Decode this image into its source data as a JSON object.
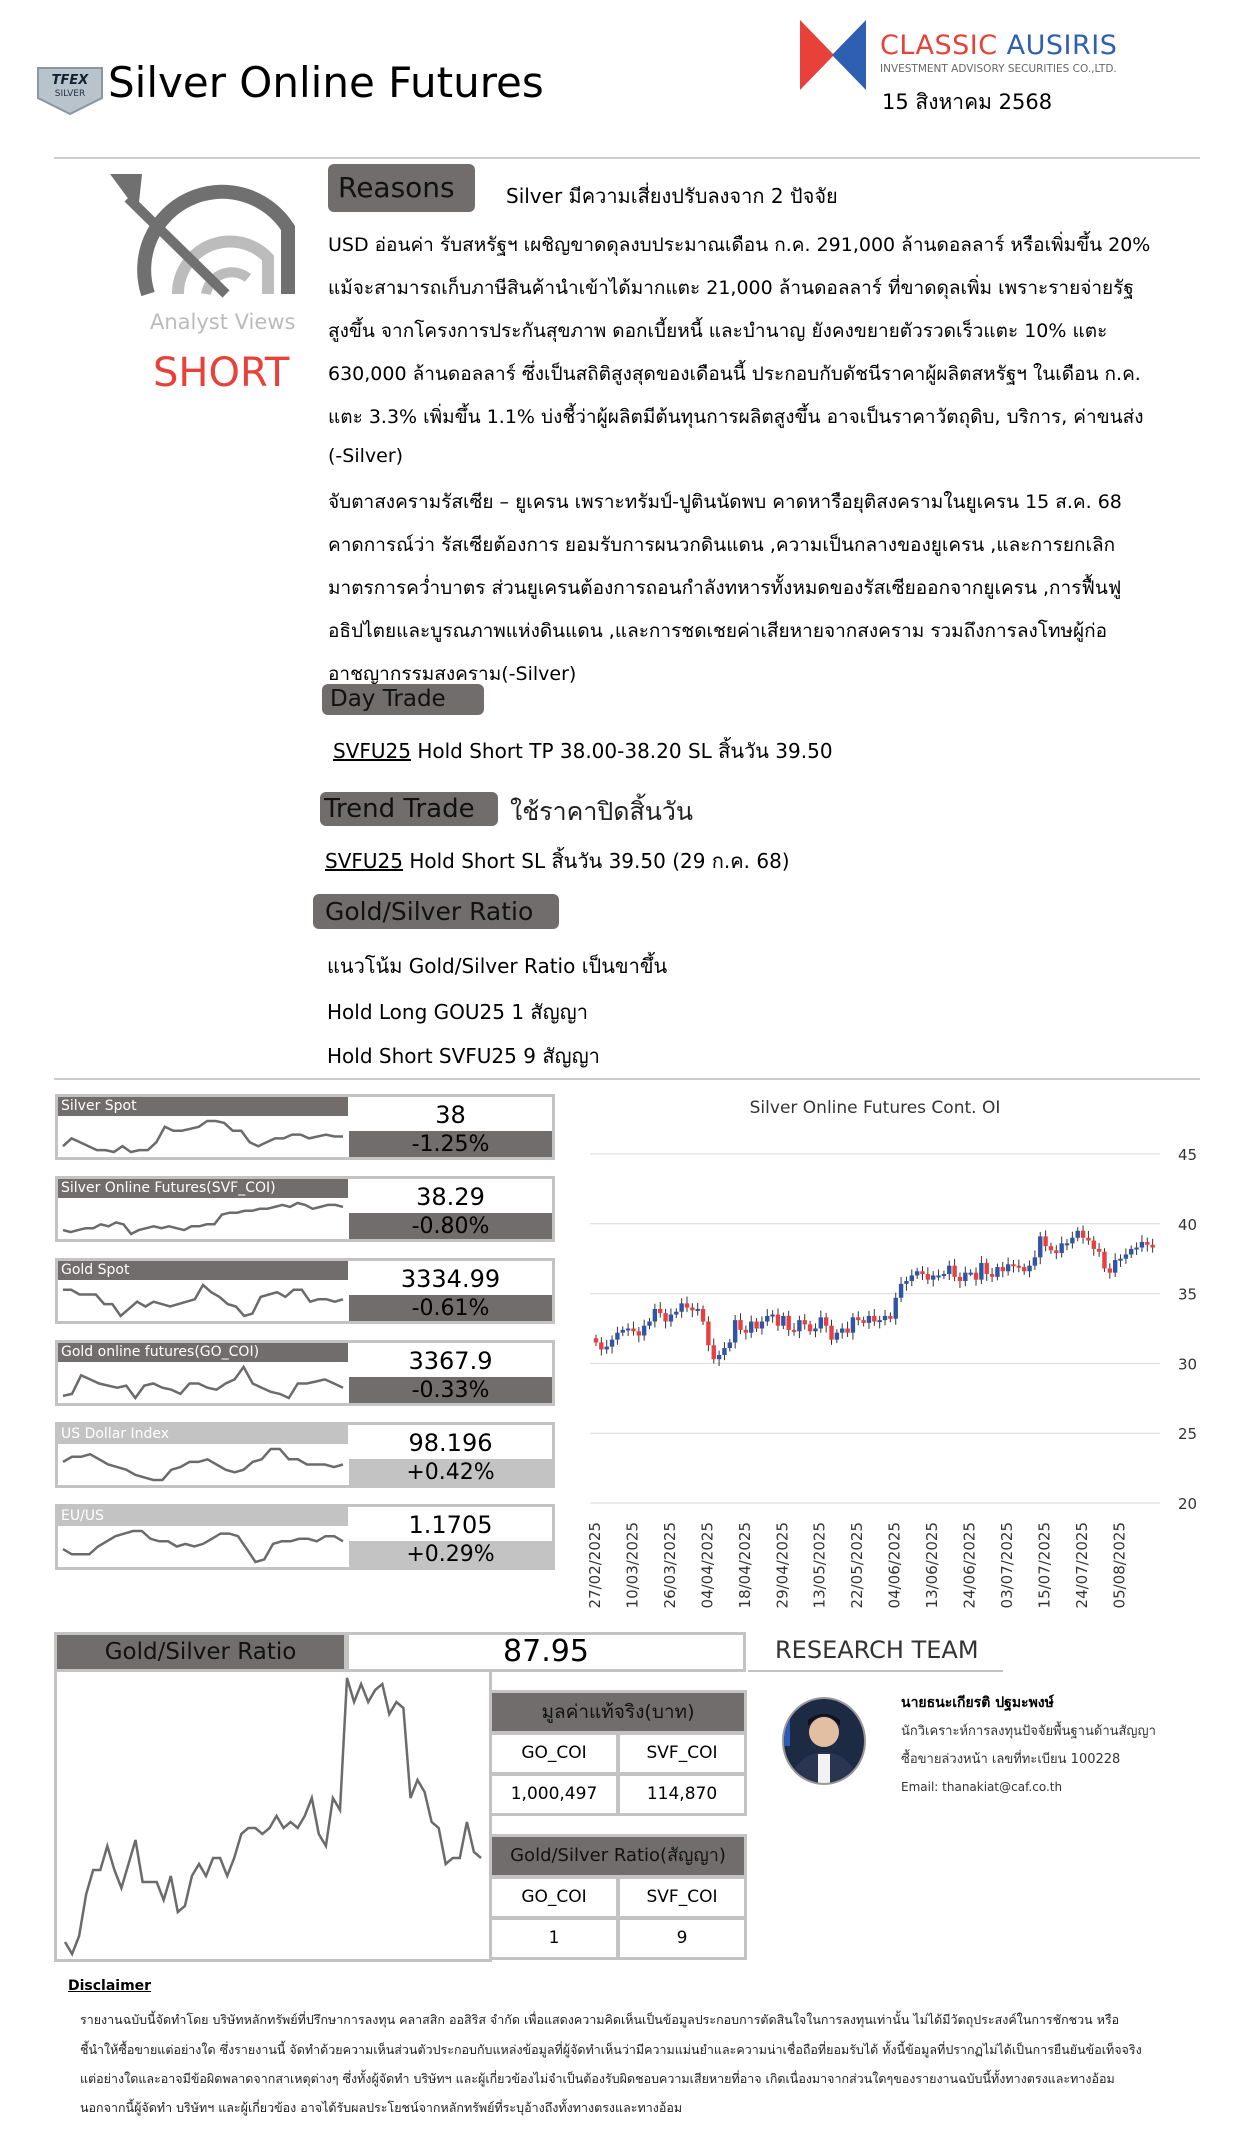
{
  "header": {
    "badge_text": "TFEX SILVER",
    "title": "Silver Online Futures",
    "brand_name": "CLASSIC AUSIRIS",
    "brand_sub": "INVESTMENT ADVISORY SECURITIES CO.,LTD.",
    "date": "15 สิงหาคม 2568",
    "brand_colors": {
      "red": "#e8413a",
      "blue": "#2f5fb0"
    }
  },
  "view": {
    "label": "Analyst Views",
    "signal": "SHORT",
    "signal_color": "#e8413a"
  },
  "reasons": {
    "label": "Reasons",
    "headline": "Silver มีความเสี่ยงปรับลงจาก 2 ปัจจัย",
    "lines": [
      "USD อ่อนค่า รับสหรัฐฯ เผชิญขาดดุลงบประมาณเดือน ก.ค. 291,000 ล้านดอลลาร์ หรือเพิ่มขึ้น 20%",
      "แม้จะสามารถเก็บภาษีสินค้านำเข้าได้มากแตะ 21,000 ล้านดอลลาร์ ที่ขาดดุลเพิ่ม เพราะรายจ่ายรัฐ",
      "สูงขึ้น จากโครงการประกันสุขภาพ ดอกเบี้ยหนี้ และบำนาญ ยังคงขยายตัวรวดเร็วแตะ 10% แตะ",
      "630,000 ล้านดอลลาร์ ซึ่งเป็นสถิติสูงสุดของเดือนนี้ ประกอบกับดัชนีราคาผู้ผลิตสหรัฐฯ ในเดือน ก.ค.",
      "แตะ 3.3% เพิ่มขึ้น 1.1% บ่งชี้ว่าผู้ผลิตมีต้นทุนการผลิตสูงขึ้น อาจเป็นราคาวัตถุดิบ, บริการ, ค่าขนส่ง",
      "(-Silver)",
      "จับตาสงครามรัสเซีย – ยูเครน เพราะทรัมป์-ปูตินนัดพบ คาดหารือยุติสงครามในยูเครน 15 ส.ค. 68",
      "คาดการณ์ว่า รัสเซียต้องการ ยอมรับการผนวกดินแดน ,ความเป็นกลางของยูเครน ,และการยกเลิก",
      "มาตรการคว่ำบาตร ส่วนยูเครนต้องการถอนกำลังทหารทั้งหมดของรัสเซียออกจากยูเครน ,การฟื้นฟู",
      "อธิปไตยและบูรณภาพแห่งดินแดน ,และการชดเชยค่าเสียหายจากสงคราม รวมถึงการลงโทษผู้ก่อ",
      "อาชญากรรมสงคราม(-Silver)"
    ]
  },
  "day_trade": {
    "label": "Day Trade",
    "symbol": "SVFU25",
    "text": "Hold Short TP 38.00-38.20  SL สิ้นวัน 39.50"
  },
  "trend_trade": {
    "label": "Trend Trade",
    "note": "ใช้ราคาปิดสิ้นวัน",
    "symbol": "SVFU25",
    "text": "Hold Short SL สิ้นวัน 39.50 (29 ก.ค. 68)"
  },
  "ratio_section": {
    "label": "Gold/Silver Ratio",
    "lines": [
      "แนวโน้ม Gold/Silver Ratio เป็นขาขึ้น",
      "Hold Long GOU25 1 สัญญา",
      "Hold Short SVFU25 9 สัญญา"
    ]
  },
  "tiles": [
    {
      "name": "Silver Spot",
      "value": "38",
      "change": "-1.25%",
      "style": "dark",
      "spark": [
        2,
        4,
        3,
        2,
        1,
        1,
        0.5,
        2,
        0.5,
        1,
        1,
        3,
        7,
        6,
        6,
        6.5,
        7,
        8.5,
        8.5,
        8,
        6,
        6,
        3,
        2,
        3,
        4,
        4,
        5,
        5,
        4,
        4.5,
        5,
        4.5,
        4.5
      ]
    },
    {
      "name": "Silver Online Futures(SVF_COI)",
      "value": "38.29",
      "change": "-0.80%",
      "style": "dark",
      "spark": [
        1,
        0.5,
        1,
        1.5,
        1.5,
        2.5,
        2,
        3,
        2.5,
        0,
        1,
        1.5,
        2,
        1.5,
        2,
        1.5,
        1,
        2,
        2,
        2.5,
        2.5,
        5,
        5.5,
        5.5,
        6,
        6,
        6.5,
        6.5,
        7,
        7.5,
        7,
        8,
        7.5,
        6.5,
        7,
        7.5,
        7.5,
        7
      ]
    },
    {
      "name": "Gold Spot",
      "value": "3334.99",
      "change": "-0.61%",
      "style": "dark",
      "spark": [
        6,
        6,
        5,
        5,
        5,
        3,
        3,
        0.5,
        2,
        3.5,
        2.5,
        3.5,
        3,
        2.5,
        3,
        3.5,
        4,
        7,
        5.5,
        4.5,
        3,
        2.5,
        0.5,
        1,
        4.5,
        5,
        5.5,
        4.5,
        6,
        6,
        3.5,
        4,
        4,
        3.5,
        4
      ]
    },
    {
      "name": "Gold online futures(GO_COI)",
      "value": "3367.9",
      "change": "-0.33%",
      "style": "dark",
      "spark": [
        1,
        1.5,
        6,
        5,
        4,
        3.5,
        3,
        3.5,
        0.5,
        3.5,
        4,
        3,
        2.5,
        1.5,
        4,
        4,
        3,
        2.5,
        4,
        5,
        8,
        4,
        3,
        2,
        1.5,
        0.5,
        4,
        4,
        4.5,
        5,
        4,
        3
      ]
    },
    {
      "name": "US Dollar Index",
      "value": "98.196",
      "change": "+0.42%",
      "style": "light",
      "spark": [
        4,
        5,
        5,
        5.5,
        4.5,
        3.5,
        3,
        2.5,
        1.5,
        1,
        0.5,
        0.5,
        2.5,
        3,
        4,
        4,
        4.5,
        3.5,
        2.5,
        2,
        2.5,
        4,
        4.5,
        6.5,
        6.5,
        4.5,
        4.5,
        3.5,
        3.5,
        3.5,
        3,
        3.5
      ]
    },
    {
      "name": "EU/US",
      "value": "1.1705",
      "change": "+0.29%",
      "style": "light",
      "spark": [
        2.5,
        1.5,
        1.5,
        1.5,
        3,
        4,
        5,
        5.5,
        6,
        6,
        4.5,
        4,
        4,
        3,
        3.5,
        3,
        3.5,
        4.5,
        5.5,
        5.5,
        5,
        2.5,
        0,
        0.5,
        3.5,
        4,
        4,
        4.5,
        4.5,
        4,
        5,
        5,
        4
      ]
    }
  ],
  "chart_data": {
    "type": "candlestick",
    "title": "Silver Online Futures Cont. OI",
    "ylim": [
      20,
      45
    ],
    "yticks": [
      45,
      40,
      35,
      30,
      25,
      20
    ],
    "grid": true,
    "up_color": "#2f55a4",
    "down_color": "#e84040",
    "x_tick_labels": [
      "27/02/2025",
      "10/03/2025",
      "26/03/2025",
      "04/04/2025",
      "18/04/2025",
      "29/04/2025",
      "13/05/2025",
      "22/05/2025",
      "04/06/2025",
      "13/06/2025",
      "24/06/2025",
      "03/07/2025",
      "15/07/2025",
      "24/07/2025",
      "05/08/2025"
    ],
    "first_open": 31.8,
    "close": [
      31.5,
      31.0,
      31.2,
      31.7,
      32.2,
      32.4,
      32.5,
      32.3,
      32.0,
      32.7,
      33.0,
      33.9,
      33.6,
      33.0,
      33.5,
      33.7,
      34.3,
      34.0,
      33.8,
      33.9,
      33.0,
      31.3,
      30.3,
      30.6,
      31.1,
      31.5,
      33.1,
      32.4,
      32.2,
      33.0,
      32.5,
      33.0,
      33.4,
      33.5,
      32.7,
      33.4,
      32.4,
      32.3,
      33.1,
      32.8,
      32.3,
      32.5,
      33.3,
      32.7,
      31.7,
      32.2,
      32.5,
      32.2,
      33.3,
      33.1,
      32.9,
      33.4,
      33.0,
      33.1,
      33.4,
      33.2,
      34.7,
      35.7,
      35.9,
      36.3,
      36.6,
      36.4,
      36.0,
      36.3,
      36.3,
      36.4,
      37.0,
      36.2,
      35.9,
      36.5,
      36.5,
      36.0,
      37.2,
      36.4,
      36.2,
      36.9,
      36.6,
      37.1,
      37.0,
      36.9,
      36.6,
      37.0,
      37.6,
      39.1,
      38.4,
      38.1,
      37.9,
      38.6,
      38.6,
      39.0,
      39.5,
      39.0,
      38.8,
      38.2,
      38.0,
      36.8,
      36.5,
      37.4,
      37.5,
      37.8,
      38.2,
      38.3,
      38.7,
      38.5,
      38.3
    ]
  },
  "gs_ratio": {
    "label": "Gold/Silver Ratio",
    "value": "87.95",
    "series": [
      2,
      0,
      3,
      10,
      14,
      14,
      18,
      14,
      11,
      15,
      19,
      12,
      12,
      12,
      9,
      13,
      7,
      8,
      13,
      15,
      13,
      16,
      16,
      13,
      16,
      20,
      21,
      21,
      20,
      21,
      23,
      21,
      22,
      21,
      23,
      26,
      20,
      18,
      26,
      24,
      46,
      42,
      45,
      42,
      44,
      45,
      40,
      42,
      41,
      26,
      29,
      27,
      22,
      21,
      15,
      16,
      16,
      22,
      17,
      16
    ]
  },
  "real_value_table": {
    "title": "มูลค่าแท้จริง(บาท)",
    "headers": [
      "GO_COI",
      "SVF_COI"
    ],
    "values": [
      "1,000,497",
      "114,870"
    ]
  },
  "contract_table": {
    "title": "Gold/Silver Ratio(สัญญา)",
    "headers": [
      "GO_COI",
      "SVF_COI"
    ],
    "values": [
      "1",
      "9"
    ]
  },
  "research": {
    "title": "RESEARCH TEAM",
    "name": "นายธนะเกียรติ ปฐมะพงษ์",
    "role": "นักวิเคราะห์การลงทุนปัจจัยพื้นฐานด้านสัญญา",
    "license": "ซื้อขายล่วงหน้า เลขที่ทะเบียน 100228",
    "email": "Email: thanakiat@caf.co.th"
  },
  "disclaimer": {
    "title": "Disclaimer",
    "lines": [
      "รายงานฉบับนี้จัดทำโดย บริษัทหลักทรัพย์ที่ปรึกษาการลงทุน คลาสสิก ออสิริส จำกัด เพื่อแสดงความคิดเห็นเป็นข้อมูลประกอบการตัดสินใจในการลงทุนเท่านั้น ไม่ได้มีวัตถุประสงค์ในการชักชวน หรือ",
      "ชี้นำให้ซื้อขายแต่อย่างใด ซึ่งรายงานนี้ จัดทำด้วยความเห็นส่วนตัวประกอบกับแหล่งข้อมูลที่ผู้จัดทำเห็นว่ามีความแม่นยำและความน่าเชื่อถือที่ยอมรับได้ ทั้งนี้ข้อมูลที่ปรากฏไม่ได้เป็นการยืนยันข้อเท็จจริง",
      "แต่อย่างใดและอาจมีข้อผิดพลาดจากสาเหตุต่างๆ ซึ่งทั้งผู้จัดทำ บริษัทฯ และผู้เกี่ยวข้องไม่จำเป็นต้องรับผิดชอบความเสียหายที่อาจ เกิดเนื่องมาจากส่วนใดๆของรายงานฉบับนี้ทั้งทางตรงและทางอ้อม",
      "นอกจากนี้ผู้จัดทำ บริษัทฯ และผู้เกี่ยวข้อง อาจได้รับผลประโยชน์จากหลักทรัพย์ที่ระบุอ้างถึงทั้งทางตรงและทางอ้อม"
    ]
  }
}
